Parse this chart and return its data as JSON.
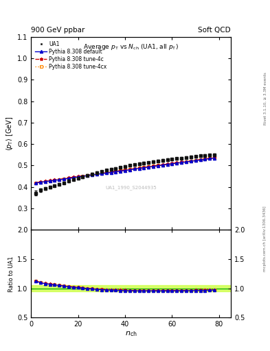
{
  "header_left": "900 GeV ppbar",
  "header_right": "Soft QCD",
  "right_label_top": "Rivet 3.1.10, ≥ 3.3M events",
  "right_label_bottom": "mcplots.cern.ch [arXiv:1306.3436]",
  "watermark": "UA1_1990_S2044935",
  "ylim_main": [
    0.2,
    1.1
  ],
  "ylim_ratio": [
    0.5,
    2.0
  ],
  "yticks_main": [
    0.3,
    0.4,
    0.5,
    0.6,
    0.7,
    0.8,
    0.9,
    1.0,
    1.1
  ],
  "yticks_ratio": [
    0.5,
    1.0,
    1.5,
    2.0
  ],
  "xlim": [
    0,
    85
  ],
  "xticks": [
    0,
    20,
    40,
    60,
    80
  ],
  "ua1_nch": [
    2,
    4,
    6,
    8,
    10,
    12,
    14,
    16,
    18,
    20,
    22,
    24,
    26,
    28,
    30,
    32,
    34,
    36,
    38,
    40,
    42,
    44,
    46,
    48,
    50,
    52,
    54,
    56,
    58,
    60,
    62,
    64,
    66,
    68,
    70,
    72,
    74,
    76,
    78
  ],
  "ua1_pt": [
    0.372,
    0.385,
    0.393,
    0.4,
    0.406,
    0.413,
    0.42,
    0.428,
    0.435,
    0.44,
    0.447,
    0.454,
    0.46,
    0.467,
    0.472,
    0.478,
    0.483,
    0.487,
    0.491,
    0.496,
    0.5,
    0.504,
    0.508,
    0.511,
    0.514,
    0.518,
    0.521,
    0.524,
    0.527,
    0.53,
    0.532,
    0.535,
    0.538,
    0.54,
    0.542,
    0.545,
    0.547,
    0.549,
    0.551
  ],
  "ua1_err": [
    0.01,
    0.008,
    0.007,
    0.006,
    0.005,
    0.005,
    0.005,
    0.005,
    0.005,
    0.005,
    0.005,
    0.005,
    0.005,
    0.005,
    0.005,
    0.005,
    0.005,
    0.005,
    0.005,
    0.005,
    0.005,
    0.005,
    0.005,
    0.005,
    0.005,
    0.005,
    0.005,
    0.005,
    0.005,
    0.005,
    0.005,
    0.005,
    0.005,
    0.005,
    0.005,
    0.005,
    0.005,
    0.005,
    0.005
  ],
  "py_default_nch": [
    2,
    4,
    6,
    8,
    10,
    12,
    14,
    16,
    18,
    20,
    22,
    24,
    26,
    28,
    30,
    32,
    34,
    36,
    38,
    40,
    42,
    44,
    46,
    48,
    50,
    52,
    54,
    56,
    58,
    60,
    62,
    64,
    66,
    68,
    70,
    72,
    74,
    76,
    78
  ],
  "py_default_pt": [
    0.418,
    0.422,
    0.425,
    0.428,
    0.431,
    0.434,
    0.437,
    0.44,
    0.443,
    0.447,
    0.45,
    0.453,
    0.456,
    0.459,
    0.462,
    0.465,
    0.468,
    0.471,
    0.474,
    0.477,
    0.48,
    0.484,
    0.487,
    0.49,
    0.493,
    0.496,
    0.499,
    0.502,
    0.505,
    0.508,
    0.511,
    0.514,
    0.517,
    0.52,
    0.523,
    0.526,
    0.529,
    0.532,
    0.535
  ],
  "py_tune4c_nch": [
    2,
    4,
    6,
    8,
    10,
    12,
    14,
    16,
    18,
    20,
    22,
    24,
    26,
    28,
    30,
    32,
    34,
    36,
    38,
    40,
    42,
    44,
    46,
    48,
    50,
    52,
    54,
    56,
    58,
    60,
    62,
    64,
    66,
    68,
    70,
    72,
    74,
    76,
    78
  ],
  "py_tune4c_pt": [
    0.42,
    0.424,
    0.427,
    0.43,
    0.433,
    0.436,
    0.439,
    0.443,
    0.446,
    0.449,
    0.452,
    0.455,
    0.458,
    0.461,
    0.464,
    0.467,
    0.47,
    0.473,
    0.477,
    0.48,
    0.483,
    0.486,
    0.489,
    0.492,
    0.495,
    0.498,
    0.501,
    0.504,
    0.507,
    0.51,
    0.513,
    0.516,
    0.519,
    0.522,
    0.525,
    0.528,
    0.531,
    0.534,
    0.537
  ],
  "py_tune4cx_nch": [
    2,
    4,
    6,
    8,
    10,
    12,
    14,
    16,
    18,
    20,
    22,
    24,
    26,
    28,
    30,
    32,
    34,
    36,
    38,
    40,
    42,
    44,
    46,
    48,
    50,
    52,
    54,
    56,
    58,
    60,
    62,
    64,
    66,
    68,
    70,
    72,
    74,
    76,
    78
  ],
  "py_tune4cx_pt": [
    0.419,
    0.423,
    0.426,
    0.429,
    0.432,
    0.435,
    0.438,
    0.442,
    0.445,
    0.448,
    0.451,
    0.454,
    0.457,
    0.461,
    0.464,
    0.467,
    0.47,
    0.473,
    0.476,
    0.479,
    0.482,
    0.485,
    0.488,
    0.491,
    0.494,
    0.497,
    0.5,
    0.503,
    0.506,
    0.509,
    0.512,
    0.515,
    0.518,
    0.521,
    0.524,
    0.527,
    0.53,
    0.533,
    0.536
  ],
  "color_ua1": "#111111",
  "color_default": "#0000cc",
  "color_tune4c": "#cc0000",
  "color_tune4cx": "#ff8800",
  "color_ratio_band_fill": "#ccff44",
  "color_ratio_line": "#00aa00",
  "background_color": "#ffffff"
}
